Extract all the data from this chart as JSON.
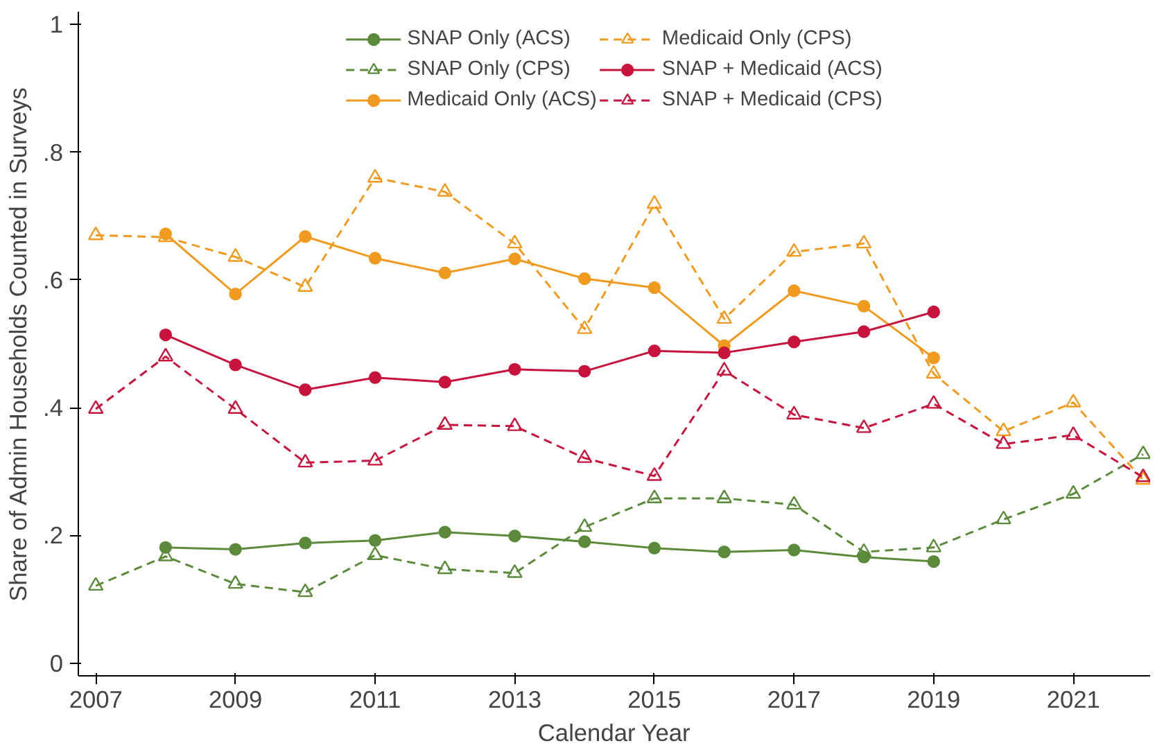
{
  "chart_data": {
    "type": "line",
    "xlabel": "Calendar Year",
    "ylabel": "Share of Admin Households Counted in Surveys",
    "xlim": [
      2006.75,
      2022.1
    ],
    "ylim": [
      -0.02,
      1.02
    ],
    "xticks": [
      2007,
      2009,
      2011,
      2013,
      2015,
      2017,
      2019,
      2021
    ],
    "yticks": [
      {
        "value": 0,
        "label": "0"
      },
      {
        "value": 0.2,
        "label": ".2"
      },
      {
        "value": 0.4,
        "label": ".4"
      },
      {
        "value": 0.6,
        "label": ".6"
      },
      {
        "value": 0.8,
        "label": ".8"
      },
      {
        "value": 1,
        "label": "1"
      }
    ],
    "grid": false,
    "legend": "top",
    "series": [
      {
        "name": "SNAP Only (ACS)",
        "color": "#5a8a3a",
        "marker": "circle",
        "line_style": "solid",
        "x": [
          2008,
          2009,
          2010,
          2011,
          2012,
          2013,
          2014,
          2015,
          2016,
          2017,
          2018,
          2019
        ],
        "values": [
          0.181,
          0.178,
          0.188,
          0.192,
          0.205,
          0.199,
          0.19,
          0.18,
          0.174,
          0.177,
          0.166,
          0.159
        ]
      },
      {
        "name": "SNAP Only (CPS)",
        "color": "#5a8a3a",
        "marker": "triangle",
        "line_style": "dashed",
        "x": [
          2007,
          2008,
          2009,
          2010,
          2011,
          2012,
          2013,
          2014,
          2015,
          2016,
          2017,
          2018,
          2019,
          2020,
          2021,
          2022
        ],
        "values": [
          0.121,
          0.167,
          0.124,
          0.111,
          0.169,
          0.147,
          0.141,
          0.213,
          0.258,
          0.258,
          0.248,
          0.174,
          0.181,
          0.225,
          0.265,
          0.327
        ]
      },
      {
        "name": "Medicaid Only (ACS)",
        "color": "#f09a1e",
        "marker": "circle",
        "line_style": "solid",
        "x": [
          2008,
          2009,
          2010,
          2011,
          2012,
          2013,
          2014,
          2015,
          2016,
          2017,
          2018,
          2019
        ],
        "values": [
          0.672,
          0.578,
          0.668,
          0.634,
          0.611,
          0.633,
          0.602,
          0.588,
          0.497,
          0.583,
          0.559,
          0.478
        ]
      },
      {
        "name": "Medicaid Only (CPS)",
        "color": "#f09a1e",
        "marker": "triangle",
        "line_style": "dashed",
        "x": [
          2007,
          2008,
          2009,
          2010,
          2011,
          2012,
          2013,
          2014,
          2015,
          2016,
          2017,
          2018,
          2019,
          2020,
          2021,
          2022
        ],
        "values": [
          0.67,
          0.667,
          0.636,
          0.589,
          0.76,
          0.738,
          0.657,
          0.523,
          0.719,
          0.539,
          0.644,
          0.657,
          0.453,
          0.363,
          0.408,
          0.287
        ]
      },
      {
        "name": "SNAP + Medicaid (ACS)",
        "color": "#c8143c",
        "marker": "circle",
        "line_style": "solid",
        "x": [
          2008,
          2009,
          2010,
          2011,
          2012,
          2013,
          2014,
          2015,
          2016,
          2017,
          2018,
          2019
        ],
        "values": [
          0.514,
          0.467,
          0.428,
          0.447,
          0.44,
          0.46,
          0.457,
          0.489,
          0.486,
          0.503,
          0.519,
          0.55
        ]
      },
      {
        "name": "SNAP + Medicaid (CPS)",
        "color": "#c8143c",
        "marker": "triangle",
        "line_style": "dashed",
        "x": [
          2007,
          2008,
          2009,
          2010,
          2011,
          2012,
          2013,
          2014,
          2015,
          2016,
          2017,
          2018,
          2019,
          2020,
          2021,
          2022
        ],
        "values": [
          0.398,
          0.48,
          0.398,
          0.314,
          0.317,
          0.373,
          0.371,
          0.321,
          0.293,
          0.458,
          0.389,
          0.368,
          0.406,
          0.343,
          0.357,
          0.291
        ]
      }
    ]
  }
}
